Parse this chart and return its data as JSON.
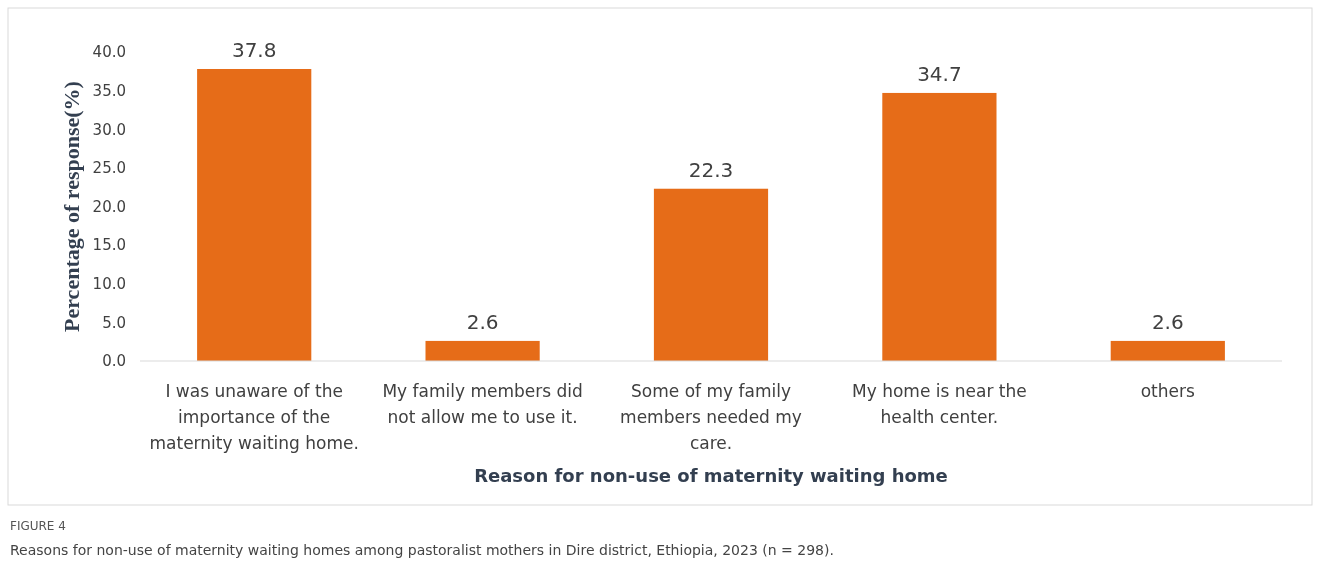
{
  "chart_data": {
    "type": "bar",
    "xlabel": "Reason for non-use of maternity waiting home",
    "ylabel": "Percentage of response(%)",
    "categories": [
      "I was unaware of the importance of the maternity waiting home.",
      "My family members did not allow me to use it.",
      "Some of my family members needed my care.",
      "My home is near the health center.",
      "others"
    ],
    "values": [
      37.8,
      2.6,
      22.3,
      34.7,
      2.6
    ],
    "color": "#e66c18",
    "data_labels": true,
    "grid": false,
    "ylim": [
      0,
      40
    ],
    "yticks": [
      {
        "value": 0,
        "label": "0.0"
      },
      {
        "value": 5,
        "label": "5.0"
      },
      {
        "value": 10,
        "label": "10.0"
      },
      {
        "value": 15,
        "label": "15.0"
      },
      {
        "value": 20,
        "label": "20.0"
      },
      {
        "value": 25,
        "label": "25.0"
      },
      {
        "value": 30,
        "label": "30.0"
      },
      {
        "value": 35,
        "label": "35.0"
      },
      {
        "value": 40,
        "label": "40.0"
      }
    ],
    "annotations": [
      "FIGURE 4",
      "Reasons for non-use of maternity waiting homes among pastoralist mothers in Dire district, Ethiopia, 2023 (n = 298)."
    ]
  }
}
